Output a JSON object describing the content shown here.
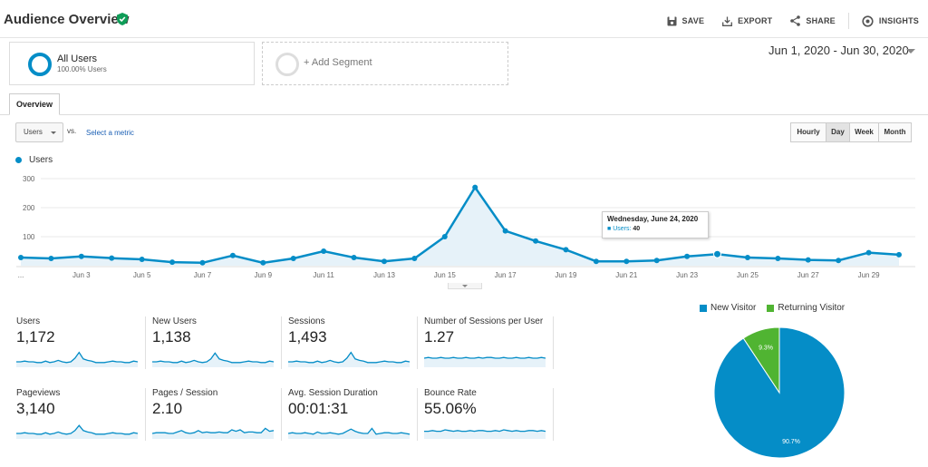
{
  "header": {
    "title": "Audience Overview",
    "tools": [
      {
        "icon": "save-icon",
        "label": "SAVE"
      },
      {
        "icon": "export-icon",
        "label": "EXPORT"
      },
      {
        "icon": "share-icon",
        "label": "SHARE"
      },
      {
        "icon": "insights-icon",
        "label": "INSIGHTS"
      }
    ]
  },
  "segments": {
    "primary": {
      "name": "All Users",
      "sub": "100.00% Users"
    },
    "add_label": "+ Add Segment"
  },
  "date_range": "Jun 1, 2020 - Jun 30, 2020",
  "tabs": [
    {
      "label": "Overview"
    }
  ],
  "controls": {
    "metric": "Users",
    "vs": "vs.",
    "select_metric": "Select a metric",
    "granularity": [
      "Hourly",
      "Day",
      "Week",
      "Month"
    ],
    "active_granularity": "Day"
  },
  "chart_data": {
    "type": "line",
    "legend": "Users",
    "x": [
      "Jun 1",
      "Jun 2",
      "Jun 3",
      "Jun 4",
      "Jun 5",
      "Jun 6",
      "Jun 7",
      "Jun 8",
      "Jun 9",
      "Jun 10",
      "Jun 11",
      "Jun 12",
      "Jun 13",
      "Jun 14",
      "Jun 15",
      "Jun 16",
      "Jun 17",
      "Jun 18",
      "Jun 19",
      "Jun 20",
      "Jun 21",
      "Jun 22",
      "Jun 23",
      "Jun 24",
      "Jun 25",
      "Jun 26",
      "Jun 27",
      "Jun 28",
      "Jun 29",
      "Jun 30"
    ],
    "values": [
      28,
      25,
      32,
      26,
      22,
      12,
      10,
      35,
      10,
      25,
      50,
      28,
      15,
      25,
      100,
      270,
      120,
      85,
      55,
      15,
      15,
      18,
      32,
      40,
      28,
      25,
      20,
      18,
      45,
      38
    ],
    "x_tick_labels": [
      "...",
      "Jun 3",
      "Jun 5",
      "Jun 7",
      "Jun 9",
      "Jun 11",
      "Jun 13",
      "Jun 15",
      "Jun 17",
      "Jun 19",
      "Jun 21",
      "Jun 23",
      "Jun 25",
      "Jun 27",
      "Jun 29"
    ],
    "y_tick_labels": [
      "100",
      "200",
      "300"
    ],
    "ylim": [
      0,
      300
    ],
    "grid": true,
    "color": "#058dc7",
    "tooltip": {
      "title": "Wednesday, June 24, 2020",
      "series": "Users:",
      "value": "40"
    }
  },
  "metrics": [
    {
      "name": "Users",
      "value": "1,172"
    },
    {
      "name": "New Users",
      "value": "1,138"
    },
    {
      "name": "Sessions",
      "value": "1,493"
    },
    {
      "name": "Number of Sessions per User",
      "value": "1.27"
    },
    {
      "name": "Pageviews",
      "value": "3,140"
    },
    {
      "name": "Pages / Session",
      "value": "2.10"
    },
    {
      "name": "Avg. Session Duration",
      "value": "00:01:31"
    },
    {
      "name": "Bounce Rate",
      "value": "55.06%"
    }
  ],
  "pie": {
    "legend": [
      {
        "name": "New Visitor",
        "color": "#058dc7"
      },
      {
        "name": "Returning Visitor",
        "color": "#50b432"
      }
    ],
    "slices": [
      {
        "name": "New Visitor",
        "value": 90.7,
        "label": "90.7%"
      },
      {
        "name": "Returning Visitor",
        "value": 9.3,
        "label": "9.3%"
      }
    ]
  }
}
